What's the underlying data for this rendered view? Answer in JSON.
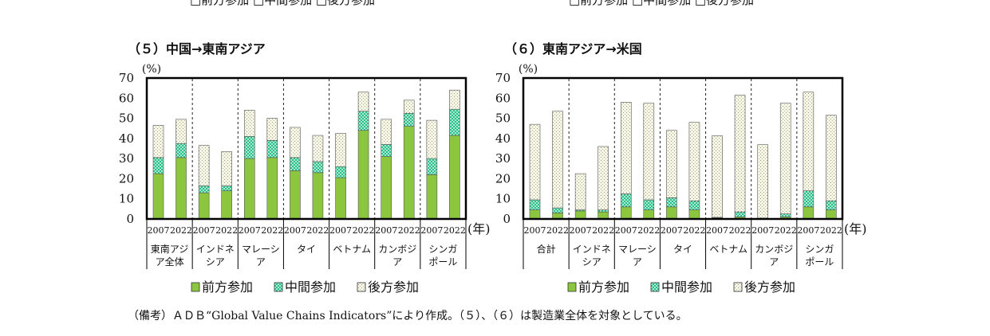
{
  "chart_data": [
    {
      "type": "bar",
      "title": "（５）中国→東南アジア",
      "ylabel": "(%)",
      "xunit": "(年)",
      "ylim": [
        0,
        70
      ],
      "yticks": [
        0,
        10,
        20,
        30,
        40,
        50,
        60,
        70
      ],
      "groups": [
        {
          "label": "東南アジア全体",
          "label_lines": [
            "東南アジ",
            "ア全体"
          ],
          "years": [
            "2007",
            "2022"
          ]
        },
        {
          "label": "インドネシア",
          "label_lines": [
            "インドネ",
            "シア"
          ],
          "years": [
            "2007",
            "2022"
          ]
        },
        {
          "label": "マレーシア",
          "label_lines": [
            "マレーシ",
            "ア"
          ],
          "years": [
            "2007",
            "2022"
          ]
        },
        {
          "label": "タイ",
          "label_lines": [
            "タイ"
          ],
          "years": [
            "2007",
            "2022"
          ]
        },
        {
          "label": "ベトナム",
          "label_lines": [
            "ベトナム"
          ],
          "years": [
            "2007",
            "2022"
          ]
        },
        {
          "label": "カンボジア",
          "label_lines": [
            "カンボジ",
            "ア"
          ],
          "years": [
            "2007",
            "2022"
          ]
        },
        {
          "label": "シンガポール",
          "label_lines": [
            "シンガ",
            "ポール"
          ],
          "years": [
            "2007",
            "2022"
          ]
        }
      ],
      "stacked": true,
      "series": [
        {
          "name": "前方参加",
          "values": [
            22.5,
            30.5,
            13,
            14,
            30,
            30.5,
            24,
            23,
            20.5,
            44,
            31,
            46,
            22,
            41.5
          ]
        },
        {
          "name": "中間参加",
          "values": [
            8,
            7,
            3.5,
            2.5,
            11,
            8.5,
            6.5,
            5.5,
            5.5,
            9.5,
            6,
            6.5,
            8,
            13
          ]
        },
        {
          "name": "後方参加",
          "values": [
            16,
            12,
            20,
            17,
            13,
            11,
            15,
            13,
            16.5,
            9.5,
            12.5,
            6.5,
            19,
            9.5
          ]
        }
      ],
      "legend": [
        "前方参加",
        "中間参加",
        "後方参加"
      ],
      "legend_position": "bottom"
    },
    {
      "type": "bar",
      "title": "（６）東南アジア→米国",
      "ylabel": "(%)",
      "xunit": "(年)",
      "ylim": [
        0,
        70
      ],
      "yticks": [
        0,
        10,
        20,
        30,
        40,
        50,
        60,
        70
      ],
      "groups": [
        {
          "label": "合計",
          "label_lines": [
            "合計"
          ],
          "years": [
            "2007",
            "2022"
          ]
        },
        {
          "label": "インドネシア",
          "label_lines": [
            "インドネ",
            "シア"
          ],
          "years": [
            "2007",
            "2022"
          ]
        },
        {
          "label": "マレーシア",
          "label_lines": [
            "マレーシ",
            "ア"
          ],
          "years": [
            "2007",
            "2022"
          ]
        },
        {
          "label": "タイ",
          "label_lines": [
            "タイ"
          ],
          "years": [
            "2007",
            "2022"
          ]
        },
        {
          "label": "ベトナム",
          "label_lines": [
            "ベトナム"
          ],
          "years": [
            "2007",
            "2022"
          ]
        },
        {
          "label": "カンボジア",
          "label_lines": [
            "カンボジ",
            "ア"
          ],
          "years": [
            "2007",
            "2022"
          ]
        },
        {
          "label": "シンガポール",
          "label_lines": [
            "シンガ",
            "ポール"
          ],
          "years": [
            "2007",
            "2022"
          ]
        }
      ],
      "stacked": true,
      "series": [
        {
          "name": "前方参加",
          "values": [
            4.5,
            3,
            4,
            3.5,
            6,
            4.5,
            6,
            4.5,
            0.5,
            1,
            0.2,
            1,
            6,
            4.5
          ]
        },
        {
          "name": "中間参加",
          "values": [
            5,
            2.5,
            0.5,
            1,
            6.5,
            5,
            4.5,
            4.5,
            0.3,
            2.5,
            0.2,
            1.5,
            8,
            4.5
          ]
        },
        {
          "name": "後方参加",
          "values": [
            37.5,
            48,
            18,
            31.5,
            45.5,
            48,
            33.5,
            39,
            40.5,
            58,
            36.5,
            55,
            49,
            42.5
          ]
        }
      ],
      "legend": [
        "前方参加",
        "中間参加",
        "後方参加"
      ],
      "legend_position": "bottom"
    }
  ],
  "colors": {
    "forward": "#8cc63f",
    "middle": "#2bbd8a",
    "backward": "#f3f3dd",
    "axis": "#000000"
  },
  "top_legend_left": "□前方参加 □中間参加 □後方参加",
  "top_legend_right": "□前方参加 □中間参加 □後方参加",
  "note": "（備考）ＡＤＢ“Global Value Chains Indicators”により作成。（５）、（６）は製造業全体を対象としている。"
}
